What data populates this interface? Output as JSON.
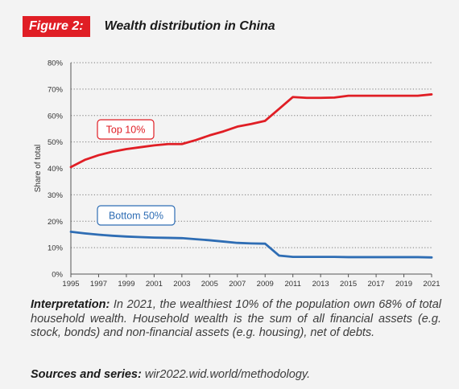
{
  "figure": {
    "badge": "Figure 2:",
    "title": "Wealth distribution in China"
  },
  "chart_data": {
    "type": "line",
    "title": "Wealth distribution in China",
    "xlabel": "",
    "ylabel": "Share of total",
    "xlim": [
      1995,
      2021
    ],
    "ylim": [
      0,
      80
    ],
    "y_tick_suffix": "%",
    "x_ticks": [
      1995,
      1997,
      1999,
      2001,
      2003,
      2005,
      2007,
      2009,
      2011,
      2013,
      2015,
      2017,
      2019,
      2021
    ],
    "y_ticks": [
      0,
      10,
      20,
      30,
      40,
      50,
      60,
      70,
      80
    ],
    "grid": "horizontal-dotted",
    "series": [
      {
        "name": "Top 10%",
        "color": "#e01e25",
        "x": [
          1995,
          1996,
          1997,
          1998,
          1999,
          2000,
          2001,
          2002,
          2003,
          2004,
          2005,
          2006,
          2007,
          2008,
          2009,
          2010,
          2011,
          2012,
          2013,
          2014,
          2015,
          2016,
          2017,
          2018,
          2019,
          2020,
          2021
        ],
        "values": [
          40.5,
          43.2,
          45.0,
          46.3,
          47.3,
          48.0,
          48.7,
          49.2,
          49.2,
          50.7,
          52.5,
          54.0,
          55.8,
          56.8,
          58.0,
          62.5,
          67.0,
          66.7,
          66.7,
          66.8,
          67.5,
          67.5,
          67.5,
          67.5,
          67.5,
          67.5,
          68.0
        ]
      },
      {
        "name": "Bottom 50%",
        "color": "#2e6db4",
        "x": [
          1995,
          1996,
          1997,
          1998,
          1999,
          2000,
          2001,
          2002,
          2003,
          2004,
          2005,
          2006,
          2007,
          2008,
          2009,
          2010,
          2011,
          2012,
          2013,
          2014,
          2015,
          2016,
          2017,
          2018,
          2019,
          2020,
          2021
        ],
        "values": [
          16.0,
          15.4,
          14.9,
          14.5,
          14.2,
          14.0,
          13.8,
          13.7,
          13.6,
          13.2,
          12.8,
          12.3,
          11.8,
          11.6,
          11.5,
          7.0,
          6.5,
          6.5,
          6.5,
          6.5,
          6.4,
          6.4,
          6.4,
          6.4,
          6.4,
          6.4,
          6.3
        ]
      }
    ]
  },
  "caption": {
    "interpretation_label": "Interpretation:",
    "interpretation_text": " In 2021, the wealthiest 10% of the population own 68% of total household wealth. Household wealth is the sum of all financial assets (e.g. stock, bonds) and non-financial assets (e.g. housing), net of debts.",
    "sources_label": "Sources and series:",
    "sources_text": " wir2022.wid.world/methodology."
  }
}
